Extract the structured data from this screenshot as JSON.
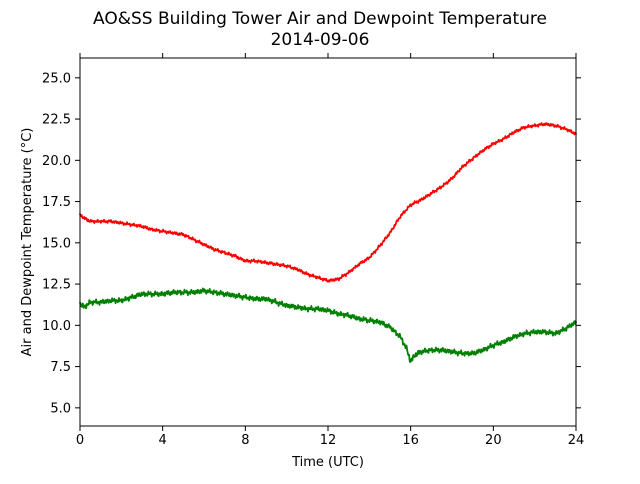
{
  "chart_data": {
    "type": "line",
    "title_lines": [
      "AO&SS Building Tower Air and Dewpoint Temperature",
      "2014-09-06"
    ],
    "xlabel": "Time (UTC)",
    "ylabel": "Air and Dewpoint Temperature (°C)",
    "xlim": [
      0,
      24
    ],
    "ylim": [
      3.9,
      26.2
    ],
    "x_ticks": [
      0,
      4,
      8,
      12,
      16,
      20,
      24
    ],
    "x_tick_labels": [
      "0",
      "4",
      "8",
      "12",
      "16",
      "20",
      "24"
    ],
    "y_ticks": [
      5.0,
      7.5,
      10.0,
      12.5,
      15.0,
      17.5,
      20.0,
      22.5,
      25.0
    ],
    "y_tick_labels": [
      "5.0",
      "7.5",
      "10.0",
      "12.5",
      "15.0",
      "17.5",
      "20.0",
      "22.5",
      "25.0"
    ],
    "grid": false,
    "series": [
      {
        "color": "#ff0000",
        "x": [
          0,
          0.2,
          0.5,
          1,
          1.5,
          2,
          2.5,
          3,
          3.5,
          4,
          4.5,
          5,
          5.5,
          6,
          6.5,
          7,
          7.5,
          8,
          8.5,
          9,
          9.5,
          10,
          10.5,
          11,
          11.5,
          12,
          12.5,
          13,
          13.5,
          14,
          14.5,
          15,
          15.5,
          16,
          16.5,
          17,
          17.5,
          18,
          18.5,
          19,
          19.5,
          20,
          20.5,
          21,
          21.5,
          22,
          22.5,
          23,
          23.5,
          24
        ],
        "y": [
          16.7,
          16.5,
          16.3,
          16.3,
          16.3,
          16.2,
          16.1,
          16.0,
          15.8,
          15.7,
          15.6,
          15.5,
          15.2,
          14.9,
          14.6,
          14.4,
          14.2,
          13.9,
          13.9,
          13.8,
          13.7,
          13.6,
          13.4,
          13.1,
          12.9,
          12.7,
          12.8,
          13.2,
          13.7,
          14.1,
          14.8,
          15.6,
          16.6,
          17.3,
          17.6,
          18.0,
          18.4,
          18.9,
          19.6,
          20.1,
          20.6,
          21.0,
          21.3,
          21.7,
          22.0,
          22.1,
          22.2,
          22.1,
          21.9,
          21.6
        ]
      },
      {
        "color": "#008000",
        "x": [
          0,
          0.2,
          0.5,
          1,
          1.5,
          2,
          2.5,
          3,
          3.5,
          4,
          4.5,
          5,
          5.5,
          6,
          6.5,
          7,
          7.5,
          8,
          8.5,
          9,
          9.5,
          10,
          10.5,
          11,
          11.5,
          12,
          12.5,
          13,
          13.5,
          14,
          14.5,
          15,
          15.5,
          15.8,
          16,
          16.2,
          16.5,
          17,
          17.5,
          18,
          18.5,
          19,
          19.5,
          20,
          20.5,
          21,
          21.5,
          22,
          22.5,
          23,
          23.5,
          24
        ],
        "y": [
          11.3,
          11.1,
          11.4,
          11.4,
          11.5,
          11.5,
          11.7,
          11.9,
          11.9,
          11.9,
          12.0,
          12.0,
          12.0,
          12.1,
          12.0,
          11.9,
          11.8,
          11.7,
          11.6,
          11.6,
          11.4,
          11.2,
          11.1,
          11.0,
          11.0,
          10.9,
          10.7,
          10.6,
          10.4,
          10.3,
          10.2,
          9.9,
          9.3,
          8.6,
          7.8,
          8.2,
          8.4,
          8.5,
          8.5,
          8.4,
          8.3,
          8.3,
          8.5,
          8.8,
          9.0,
          9.3,
          9.5,
          9.6,
          9.6,
          9.5,
          9.8,
          10.2
        ]
      }
    ]
  }
}
